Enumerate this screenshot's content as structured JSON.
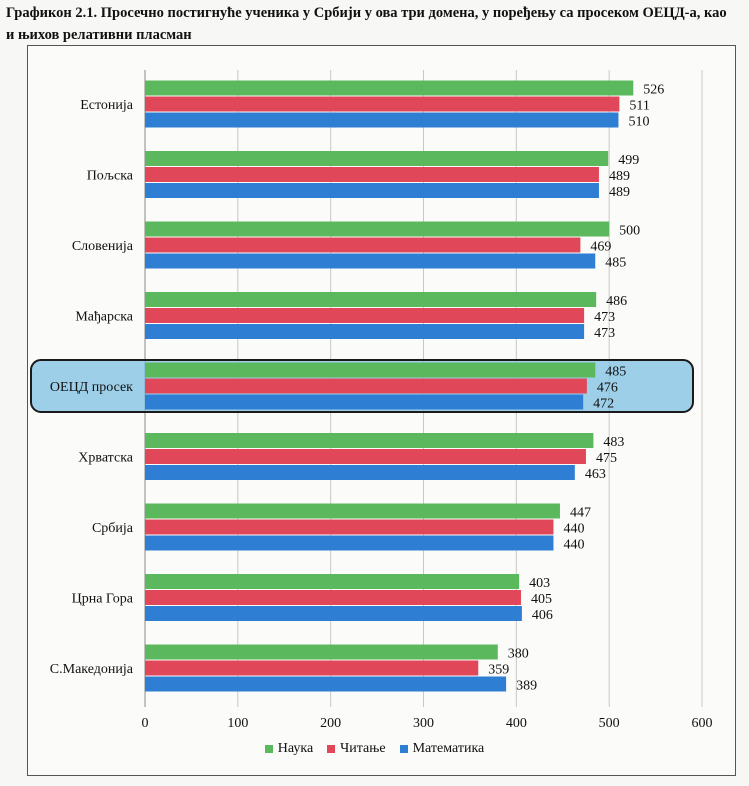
{
  "title": "Графикон 2.1. Просечно постигнуће ученика у Србији у ова три домена, у поређењу са просеком ОЕЦД-а, као и њихов релативни пласман",
  "chart_data": {
    "type": "bar",
    "orientation": "horizontal",
    "categories": [
      "Естонија",
      "Пољска",
      "Словенија",
      "Мађарска",
      "ОЕЦД просек",
      "Хрватска",
      "Србија",
      "Црна Гора",
      "С.Македонија"
    ],
    "highlighted_category": "ОЕЦД просек",
    "series": [
      {
        "name": "Наука",
        "color": "#5cb85c",
        "values": [
          526,
          499,
          500,
          486,
          485,
          483,
          447,
          403,
          380
        ]
      },
      {
        "name": "Читање",
        "color": "#e0485a",
        "values": [
          511,
          489,
          469,
          473,
          476,
          475,
          440,
          405,
          359
        ]
      },
      {
        "name": "Математика",
        "color": "#2e7fd4",
        "values": [
          510,
          489,
          485,
          473,
          472,
          463,
          440,
          406,
          389
        ]
      }
    ],
    "xlim": [
      0,
      600
    ],
    "xticks": [
      0,
      100,
      200,
      300,
      400,
      500,
      600
    ],
    "gridlines": true,
    "legend_position": "bottom"
  }
}
